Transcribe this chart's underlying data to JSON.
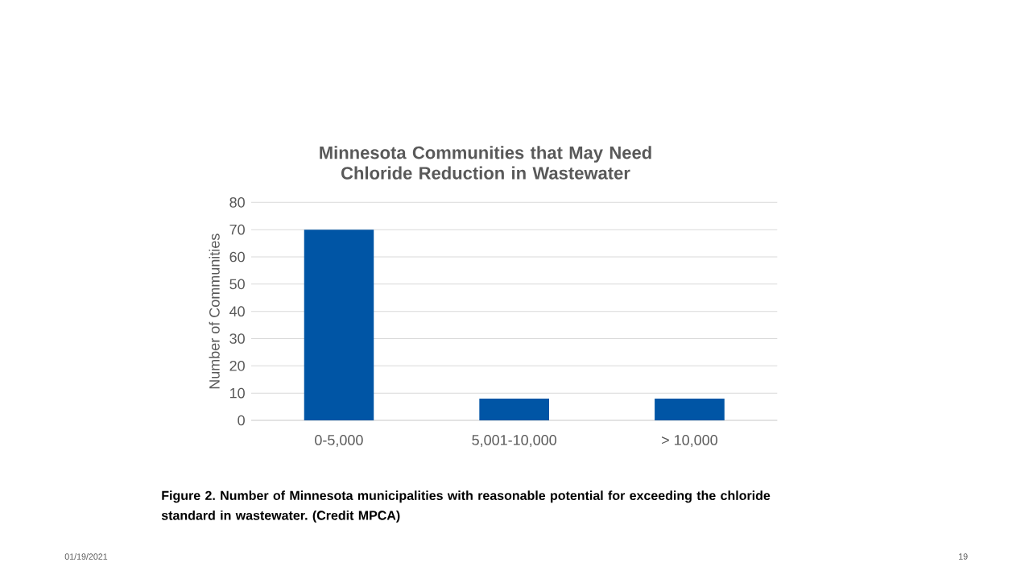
{
  "chart_data": {
    "type": "bar",
    "title": "Minnesota Communities that May Need Chloride Reduction in Wastewater",
    "ylabel": "Number of Communities",
    "categories": [
      "0-5,000",
      "5,001-10,000",
      "> 10,000"
    ],
    "values": [
      70,
      8,
      8
    ],
    "color": "#0055a5",
    "ylim": [
      0,
      80
    ],
    "yticks": [
      0,
      10,
      20,
      30,
      40,
      50,
      60,
      70,
      80
    ],
    "grid": "y",
    "annotations": [
      "Figure 2. Number of Minnesota municipalities with reasonable potential for exceeding the chloride standard in wastewater. (Credit MPCA)",
      "01/19/2021",
      "19"
    ]
  }
}
